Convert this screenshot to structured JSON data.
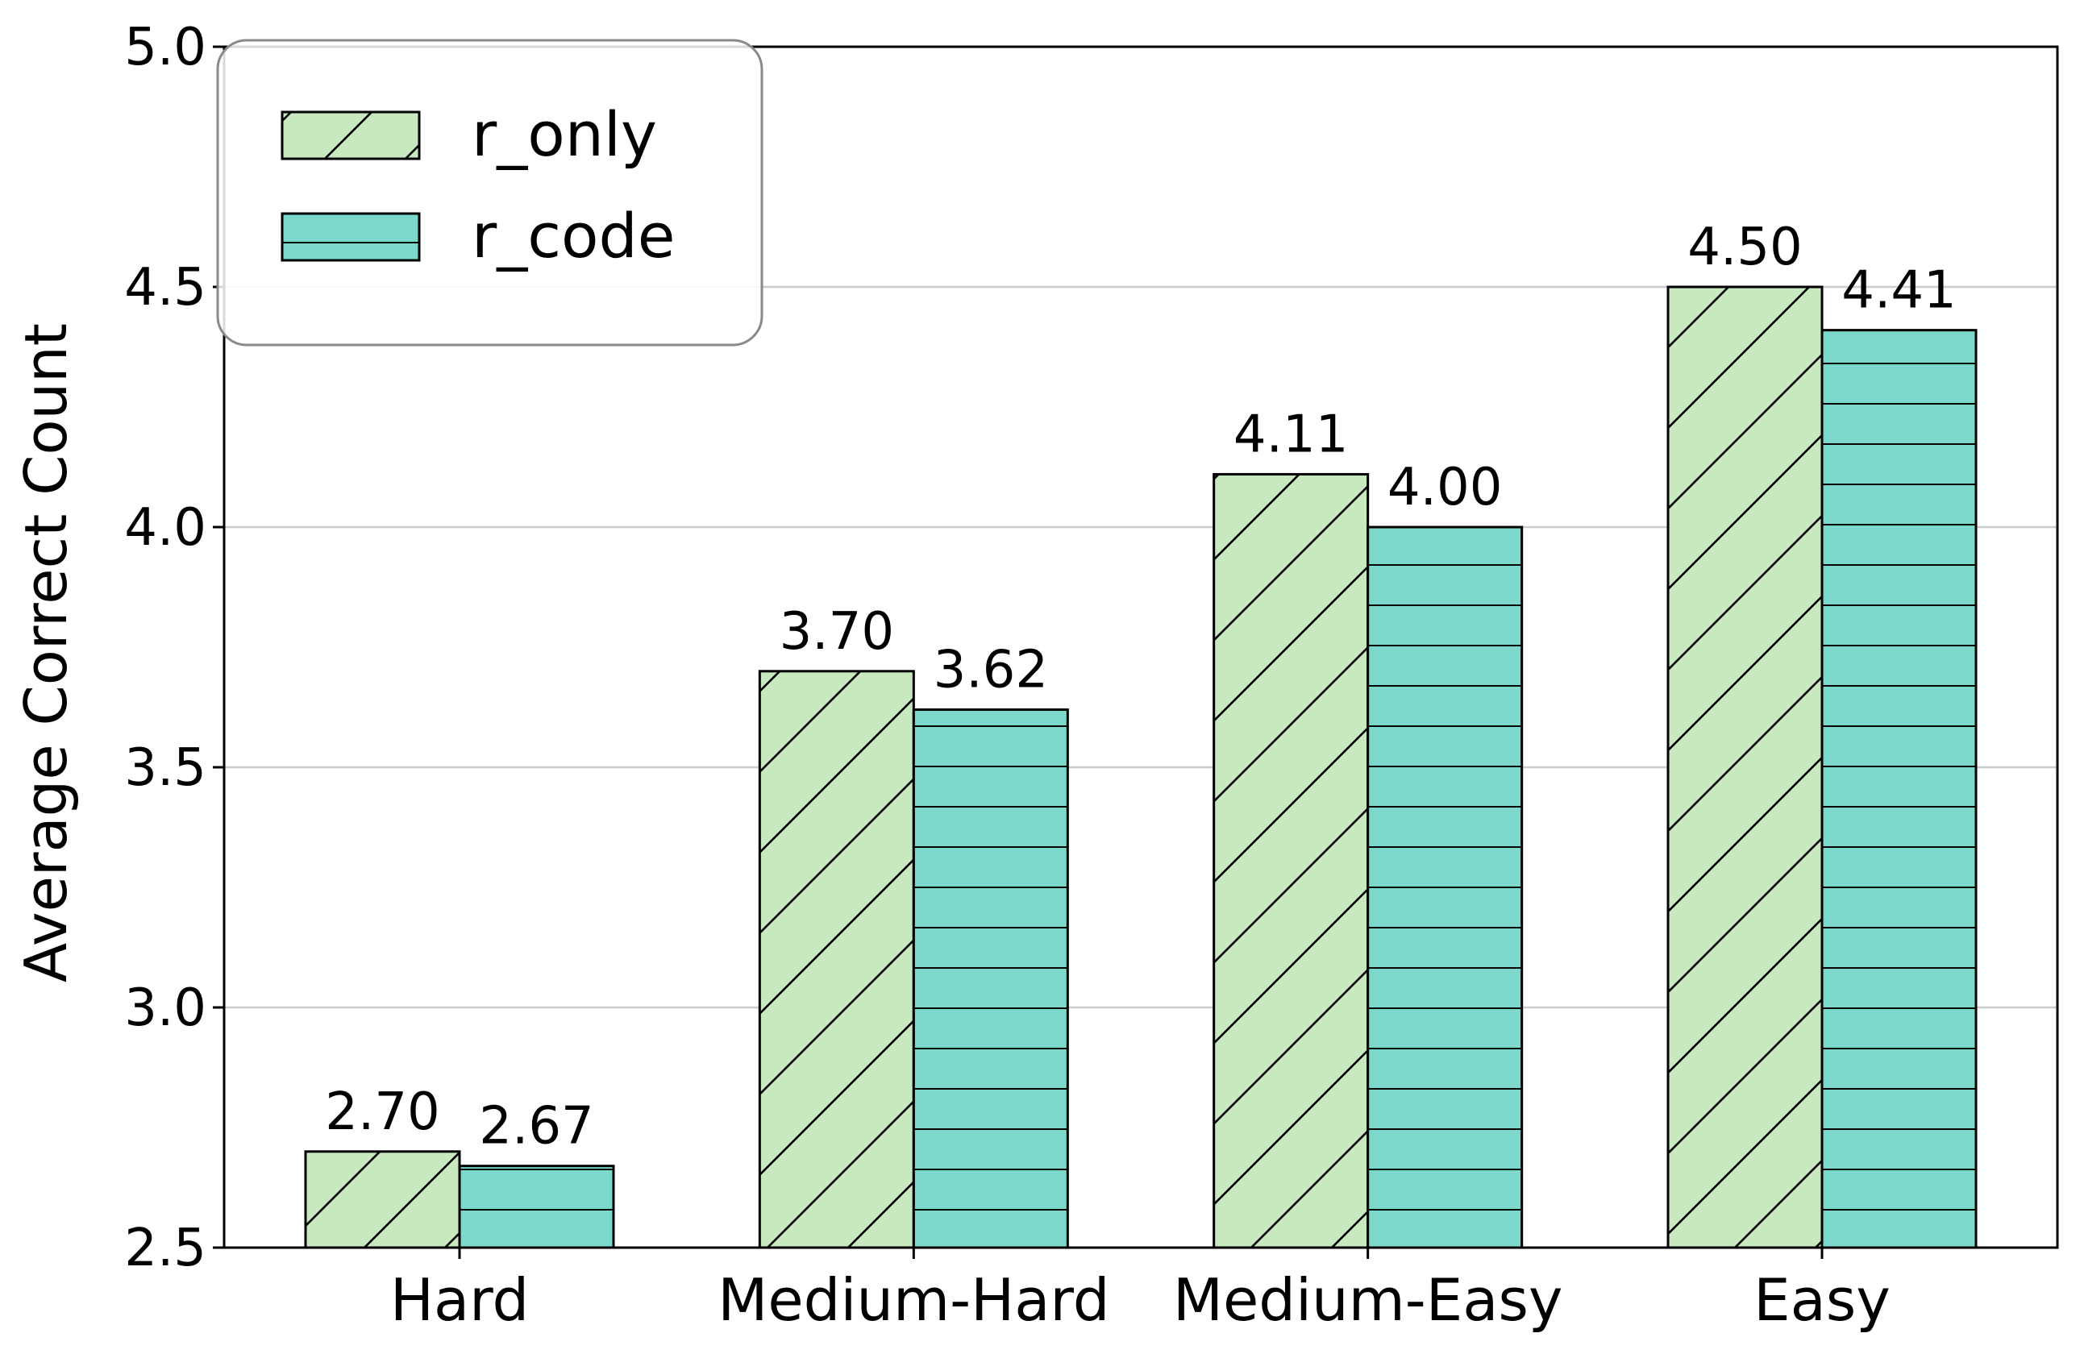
{
  "chart_data": {
    "type": "bar",
    "categories": [
      "Hard",
      "Medium-Hard",
      "Medium-Easy",
      "Easy"
    ],
    "series": [
      {
        "name": "r_only",
        "values": [
          2.7,
          3.7,
          4.11,
          4.5
        ],
        "color": "#c8e8c0",
        "hatch": "diagonal"
      },
      {
        "name": "r_code",
        "values": [
          2.67,
          3.62,
          4.0,
          4.41
        ],
        "color": "#7dd8cc",
        "hatch": "horizontal"
      }
    ],
    "data_labels": [
      [
        "2.70",
        "3.70",
        "4.11",
        "4.50"
      ],
      [
        "2.67",
        "3.62",
        "4.00",
        "4.41"
      ]
    ],
    "xlabel": "",
    "ylabel": "Average Correct Count",
    "ylim": [
      2.5,
      5.0
    ],
    "yticks": [
      2.5,
      3.0,
      3.5,
      4.0,
      4.5,
      5.0
    ],
    "ytick_labels": [
      "2.5",
      "3.0",
      "3.5",
      "4.0",
      "4.5",
      "5.0"
    ],
    "grid": "horizontal",
    "legend_position": "top-left"
  }
}
